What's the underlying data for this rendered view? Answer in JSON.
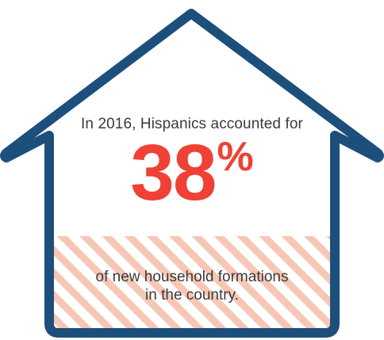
{
  "intro": "In 2016, Hispanics accounted for",
  "stat": {
    "value": "38",
    "unit": "%"
  },
  "outro": {
    "line1": "of new household formations",
    "line2": "in the country."
  },
  "colors": {
    "house_outline": "#1d4f7c",
    "stat": "#ef4135",
    "stripe": "#f7c7b5",
    "text": "#3a3a3a"
  },
  "icons": {
    "house": "house-outline-icon"
  }
}
